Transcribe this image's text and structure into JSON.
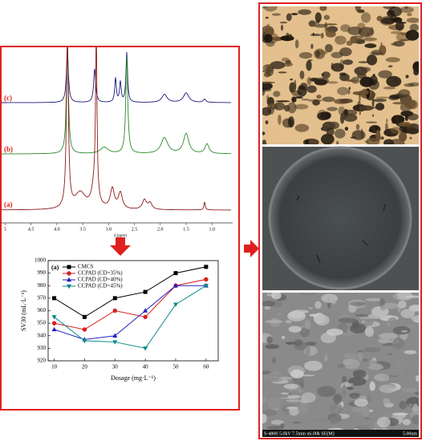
{
  "chart_data": [
    {
      "type": "spectrum",
      "x_label": "δ (ppm)",
      "xlim": [
        5.1,
        0.6
      ],
      "xticks": [
        5,
        4.5,
        {
          "value": 4,
          "label": "4.0"
        },
        3.5,
        {
          "value": 3,
          "label": "3.0"
        },
        2.5,
        {
          "value": 2,
          "label": "2.0"
        },
        1.5,
        {
          "value": 1,
          "label": "1.0"
        }
      ],
      "series": [
        {
          "name": "(c)",
          "color": "#1a1a7a"
        },
        {
          "name": "(b)",
          "color": "#2a8a2a"
        },
        {
          "name": "(a)",
          "color": "#8b1a1a"
        }
      ]
    },
    {
      "type": "line",
      "panel_label": "(a)",
      "x_label": "Dosage (mg·L⁻¹)",
      "y_label": "SV30 (mL·L⁻¹)",
      "x": [
        10,
        20,
        30,
        40,
        50,
        60
      ],
      "xlim": [
        8,
        64
      ],
      "xticks": [
        10,
        20,
        30,
        40,
        50,
        60
      ],
      "ylim": [
        920,
        1000
      ],
      "yticks": [
        920,
        930,
        940,
        950,
        960,
        970,
        980,
        990,
        1000
      ],
      "series": [
        {
          "name": "CMCS",
          "color": "#000000",
          "marker": "square",
          "values": [
            970,
            955,
            970,
            975,
            990,
            995
          ]
        },
        {
          "name": "CCPAD (CD=35%)",
          "color": "#d62020",
          "marker": "circle",
          "values": [
            950,
            945,
            960,
            955,
            980,
            985
          ]
        },
        {
          "name": "CCPAD (CD=40%)",
          "color": "#2020c0",
          "marker": "triangle-up",
          "values": [
            945,
            937,
            940,
            960,
            980,
            980
          ]
        },
        {
          "name": "CCPAD (CD=45%)",
          "color": "#0e8a8a",
          "marker": "triangle-down",
          "values": [
            955,
            936,
            935,
            930,
            965,
            980
          ]
        }
      ]
    }
  ],
  "sem_label": {
    "info": "S-4800 5.0kV 7.5mm x6.00k SE(M)",
    "scale": "5.00um"
  }
}
